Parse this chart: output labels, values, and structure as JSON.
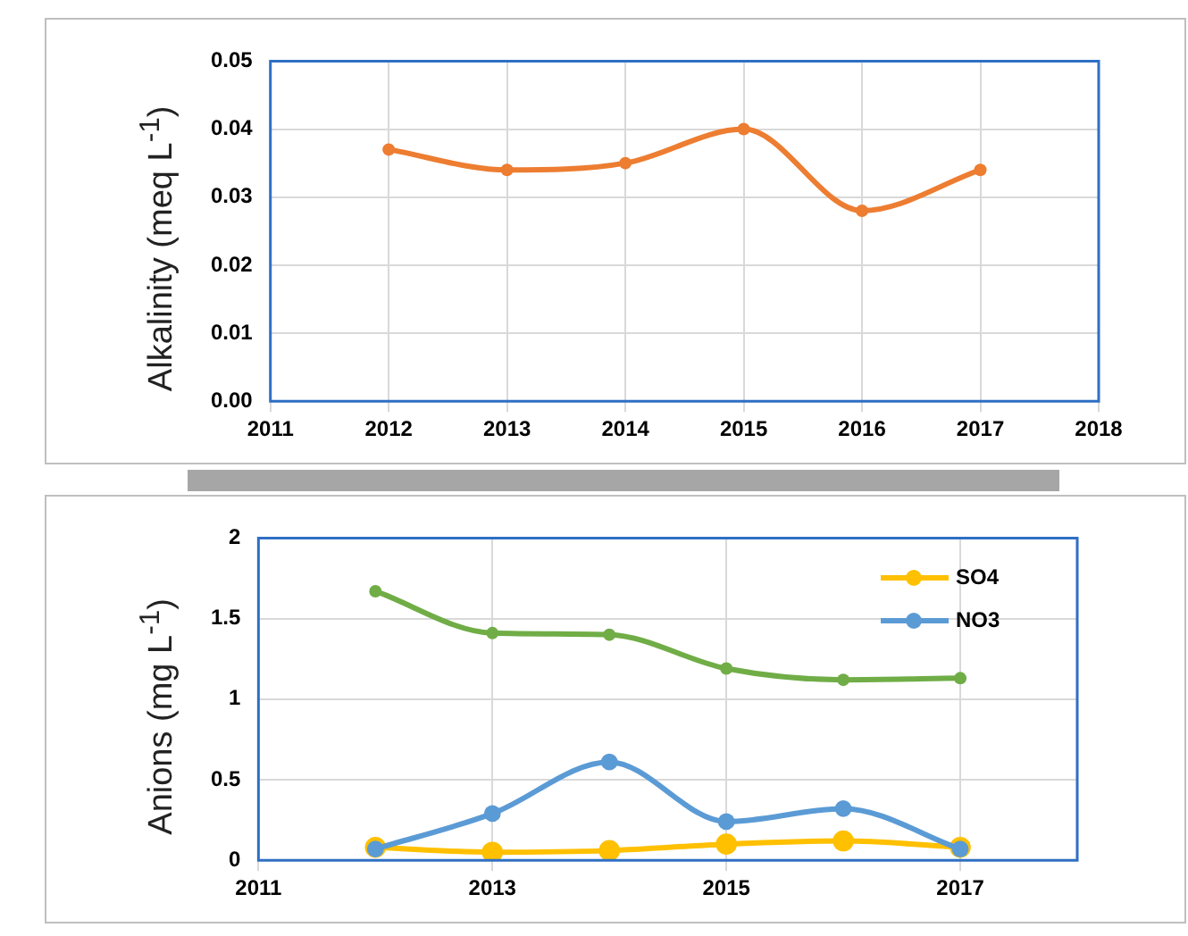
{
  "chart_data": [
    {
      "type": "line",
      "ylabel": "Alkalinity (meq L$^{-1}$)",
      "x": [
        2012,
        2013,
        2014,
        2015,
        2016,
        2017
      ],
      "series": [
        {
          "color": "#ed7d31",
          "values": [
            0.037,
            0.034,
            0.035,
            0.04,
            0.028,
            0.034
          ]
        }
      ],
      "xlim": [
        2011,
        2018
      ],
      "xticks": [
        2011,
        2012,
        2013,
        2014,
        2015,
        2016,
        2017,
        2018
      ],
      "ylim": [
        0,
        0.05
      ],
      "yticks": [
        {
          "value": 0,
          "label": "0.00"
        },
        {
          "value": 0.01,
          "label": "0.01"
        },
        {
          "value": 0.02,
          "label": "0.02"
        },
        {
          "value": 0.03,
          "label": "0.03"
        },
        {
          "value": 0.04,
          "label": "0.04"
        },
        {
          "value": 0.05,
          "label": "0.05"
        }
      ],
      "grid": true,
      "marker": "circle",
      "legend": false
    },
    {
      "type": "line",
      "ylabel": "Anions (mg L$^{-1}$)",
      "x": [
        2012,
        2013,
        2014,
        2015,
        2016,
        2017
      ],
      "series": [
        {
          "name": "SO4",
          "color": "#ffc000",
          "values": [
            0.08,
            0.05,
            0.06,
            0.1,
            0.12,
            0.08
          ]
        },
        {
          "name": "NO3",
          "color": "#5b9bd5",
          "values": [
            0.07,
            0.29,
            0.61,
            0.24,
            0.32,
            0.07
          ]
        },
        {
          "color": "#70ad47",
          "values": [
            1.67,
            1.41,
            1.4,
            1.19,
            1.12,
            1.13
          ]
        }
      ],
      "xlim": [
        2011,
        2018
      ],
      "xticks": [
        2011,
        2013,
        2015,
        2017
      ],
      "ylim": [
        0,
        2
      ],
      "yticks": [
        0,
        0.5,
        1,
        1.5,
        2
      ],
      "grid": true,
      "marker": "circle",
      "legend": "top right"
    }
  ]
}
